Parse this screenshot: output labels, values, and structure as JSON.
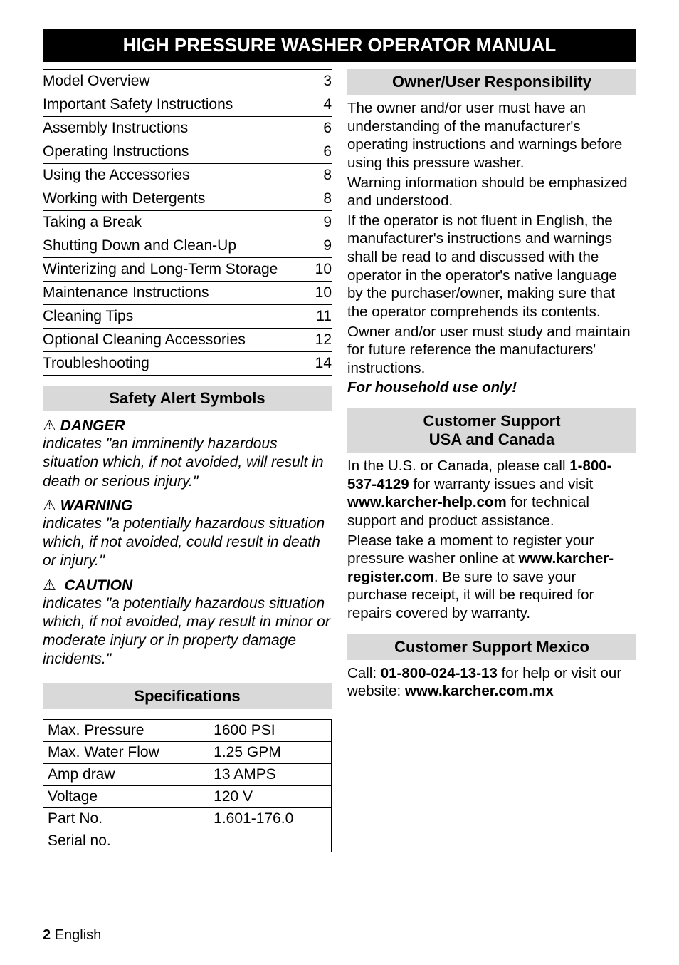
{
  "title": "HIGH PRESSURE WASHER OPERATOR MANUAL",
  "toc": {
    "items": [
      {
        "title": "Model Overview",
        "page": "3"
      },
      {
        "title": "Important Safety Instructions",
        "page": "4"
      },
      {
        "title": "Assembly Instructions",
        "page": "6"
      },
      {
        "title": "Operating Instructions",
        "page": "6"
      },
      {
        "title": "Using the Accessories",
        "page": "8"
      },
      {
        "title": "Working with Detergents",
        "page": "8"
      },
      {
        "title": "Taking a Break",
        "page": "9"
      },
      {
        "title": "Shutting Down and Clean-Up",
        "page": "9"
      },
      {
        "title": "Winterizing and Long-Term Storage",
        "page": "10"
      },
      {
        "title": "Maintenance Instructions",
        "page": "10"
      },
      {
        "title": "Cleaning Tips",
        "page": "11"
      },
      {
        "title": "Optional Cleaning Accessories",
        "page": "12"
      },
      {
        "title": "Troubleshooting",
        "page": "14"
      }
    ]
  },
  "safety": {
    "heading": "Safety Alert Symbols",
    "icon": "⚠",
    "danger_label": "DANGER",
    "danger_desc": "indicates \"an imminently hazardous situation which, if not avoided, will result in death or serious injury.\"",
    "warning_label": "WARNING",
    "warning_desc": "indicates \"a potentially hazardous situation which, if not avoided, could result in death or injury.''",
    "caution_label": "CAUTION",
    "caution_desc": "indicates \"a potentially hazardous situation which, if not avoided, may result in minor or moderate injury or in property damage incidents.\""
  },
  "specs": {
    "heading": "Specifications",
    "rows": [
      {
        "label": "Max. Pressure",
        "value": "1600 PSI"
      },
      {
        "label": "Max. Water Flow",
        "value": "1.25 GPM"
      },
      {
        "label": "Amp draw",
        "value": "13 AMPS"
      },
      {
        "label": "Voltage",
        "value": "120 V"
      },
      {
        "label": "Part No.",
        "value": "1.601-176.0"
      },
      {
        "label": "Serial no.",
        "value": ""
      }
    ]
  },
  "owner": {
    "heading": "Owner/User Responsibility",
    "p1": "The owner and/or user must have an understanding of the manufacturer's operating instructions and warnings before using this pressure washer.",
    "p2": "Warning information should be emphasized and understood.",
    "p3": "If the operator is not fluent in English, the manufacturer's instructions and warnings shall be read to and discussed with the operator in the operator's native language by the purchaser/owner, making sure that the operator comprehends its contents.",
    "p4": "Owner and/or user must study and maintain for future reference the manufacturers' instructions.",
    "household": "For household use only!"
  },
  "support_usca": {
    "heading1": "Customer Support",
    "heading2": "USA and Canada",
    "pre_phone": "In the U.S. or Canada, please call ",
    "phone": "1-800-537-4129",
    "post_phone": " for warranty issues and visit ",
    "help_url": "www.karcher-help.com",
    "post_help": " for technical support and product assistance.",
    "register_intro": "Please take a moment to register your pressure washer online at ",
    "register_url": "www.karcher-register.com",
    "register_post": ". Be sure to save your purchase receipt, it will be required for repairs covered by warranty."
  },
  "support_mx": {
    "heading": "Customer Support Mexico",
    "call": "Call: ",
    "phone": "01-800-024-13-13",
    "mid": " for help or visit our website: ",
    "url": "www.karcher.com.mx"
  },
  "footer": {
    "page": "2",
    "lang": "English"
  }
}
